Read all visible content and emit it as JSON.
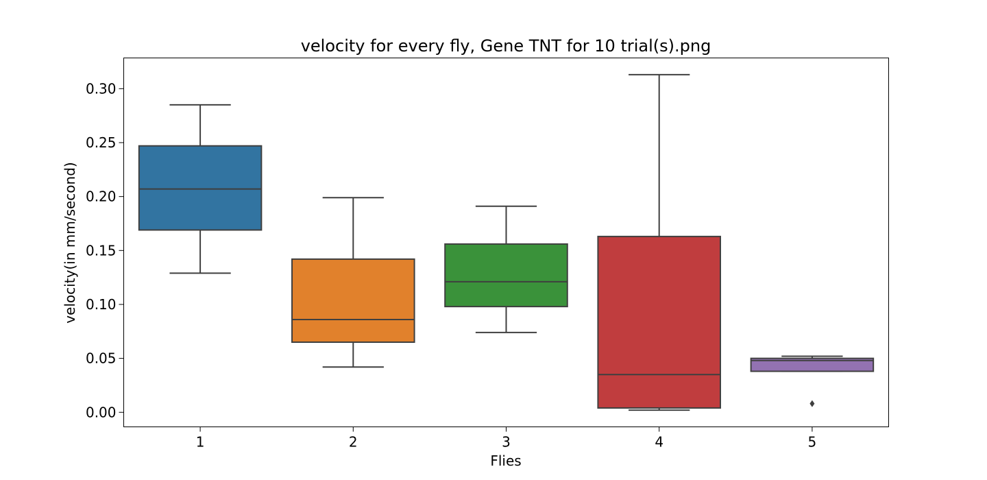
{
  "chart_data": {
    "type": "box",
    "title": "velocity for every fly, Gene TNT for 10 trial(s).png",
    "xlabel": "Flies",
    "ylabel": "velocity(in mm/second)",
    "categories": [
      "1",
      "2",
      "3",
      "4",
      "5"
    ],
    "ylim": [
      -0.0135,
      0.3285
    ],
    "yticks": [
      0.0,
      0.05,
      0.1,
      0.15,
      0.2,
      0.25,
      0.3
    ],
    "ytick_labels": [
      "0.00",
      "0.05",
      "0.10",
      "0.15",
      "0.20",
      "0.25",
      "0.30"
    ],
    "grid": false,
    "boxes": [
      {
        "category": "1",
        "color": "#3274a1",
        "whisker_low": 0.129,
        "q1": 0.169,
        "median": 0.207,
        "q3": 0.247,
        "whisker_high": 0.285,
        "outliers": []
      },
      {
        "category": "2",
        "color": "#e1812c",
        "whisker_low": 0.042,
        "q1": 0.065,
        "median": 0.086,
        "q3": 0.142,
        "whisker_high": 0.199,
        "outliers": []
      },
      {
        "category": "3",
        "color": "#3a923a",
        "whisker_low": 0.074,
        "q1": 0.098,
        "median": 0.121,
        "q3": 0.156,
        "whisker_high": 0.191,
        "outliers": []
      },
      {
        "category": "4",
        "color": "#c03d3e",
        "whisker_low": 0.002,
        "q1": 0.004,
        "median": 0.035,
        "q3": 0.163,
        "whisker_high": 0.313,
        "outliers": []
      },
      {
        "category": "5",
        "color": "#9372b2",
        "whisker_low": 0.038,
        "q1": 0.038,
        "median": 0.048,
        "q3": 0.05,
        "whisker_high": 0.052,
        "outliers": [
          0.008
        ]
      }
    ]
  }
}
